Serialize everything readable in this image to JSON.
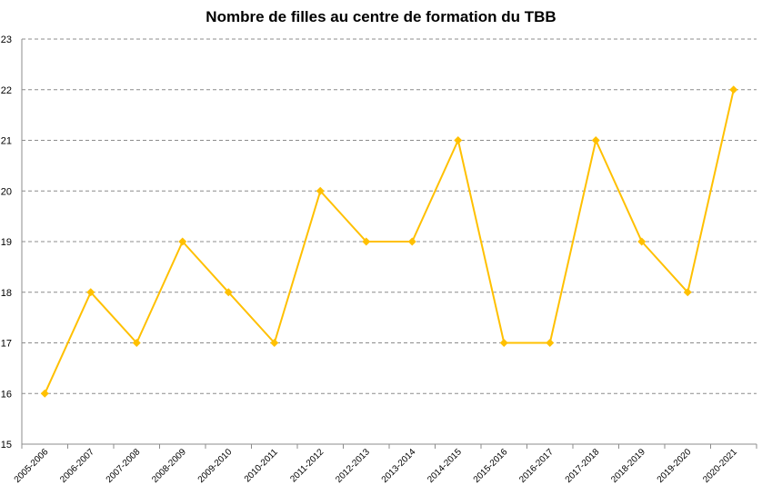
{
  "chart_data": {
    "type": "line",
    "title": "Nombre de filles au centre de formation du TBB",
    "xlabel": "",
    "ylabel": "",
    "categories": [
      "2005-2006",
      "2006-2007",
      "2007-2008",
      "2008-2009",
      "2009-2010",
      "2010-2011",
      "2011-2012",
      "2012-2013",
      "2013-2014",
      "2014-2015",
      "2015-2016",
      "2016-2017",
      "2017-2018",
      "2018-2019",
      "2019-2020",
      "2020-2021"
    ],
    "series": [
      {
        "values": [
          16,
          18,
          17,
          19,
          18,
          17,
          20,
          19,
          19,
          21,
          17,
          17,
          21,
          19,
          18,
          22
        ],
        "color": "#ffc000",
        "marker": "diamond"
      }
    ],
    "ylim": [
      15,
      23
    ],
    "yticks": [
      "15",
      "16",
      "17",
      "18",
      "19",
      "20",
      "21",
      "22",
      "23"
    ],
    "grid": true,
    "legend": "none"
  }
}
